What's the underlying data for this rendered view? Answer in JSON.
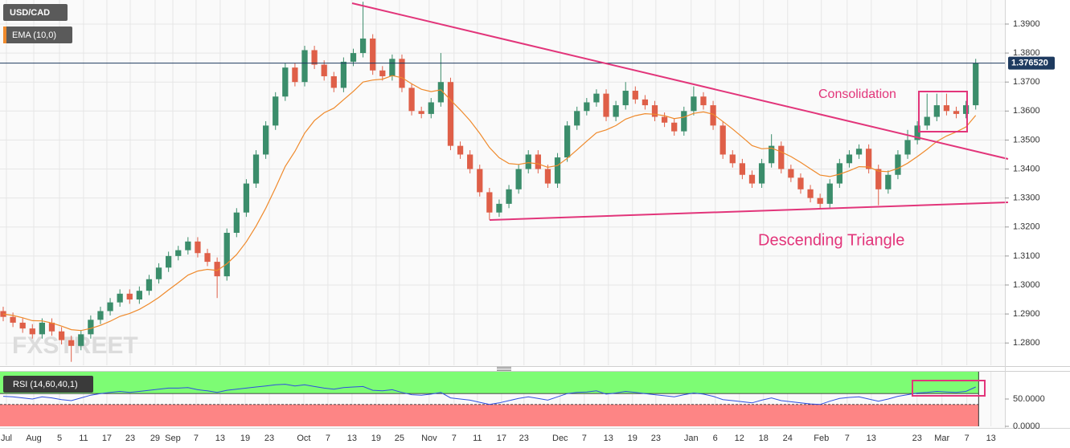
{
  "chart_data": [
    {
      "type": "candlestick",
      "series": [
        {
          "name": "USD/CAD",
          "up_color": "#3b8d6b",
          "down_color": "#df5f48",
          "open": [
            1.291,
            1.289,
            1.287,
            1.285,
            1.283,
            1.287,
            1.284,
            1.281,
            1.279,
            1.283,
            1.288,
            1.291,
            1.294,
            1.297,
            1.295,
            1.298,
            1.302,
            1.306,
            1.31,
            1.312,
            1.315,
            1.311,
            1.308,
            1.303,
            1.318,
            1.325,
            1.335,
            1.345,
            1.355,
            1.365,
            1.375,
            1.37,
            1.381,
            1.376,
            1.372,
            1.368,
            1.377,
            1.38,
            1.385,
            1.374,
            1.372,
            1.378,
            1.368,
            1.36,
            1.359,
            1.363,
            1.37,
            1.348,
            1.345,
            1.34,
            1.332,
            1.325,
            1.328,
            1.333,
            1.34,
            1.345,
            1.34,
            1.335,
            1.344,
            1.355,
            1.36,
            1.363,
            1.366,
            1.358,
            1.362,
            1.367,
            1.364,
            1.362,
            1.358,
            1.356,
            1.353,
            1.36,
            1.365,
            1.362,
            1.355,
            1.345,
            1.342,
            1.338,
            1.335,
            1.342,
            1.348,
            1.34,
            1.337,
            1.333,
            1.33,
            1.328,
            1.335,
            1.342,
            1.345,
            1.347,
            1.34,
            1.333,
            1.338,
            1.345,
            1.35,
            1.355,
            1.358,
            1.362,
            1.36,
            1.359,
            1.362
          ],
          "high": [
            1.2925,
            1.2905,
            1.2885,
            1.2865,
            1.2885,
            1.2885,
            1.2855,
            1.2825,
            1.2845,
            1.2895,
            1.2925,
            1.2955,
            1.2985,
            1.2985,
            1.2995,
            1.3035,
            1.3075,
            1.3115,
            1.3135,
            1.3165,
            1.3165,
            1.3125,
            1.3095,
            1.3195,
            1.3265,
            1.3365,
            1.3465,
            1.3565,
            1.3665,
            1.3765,
            1.3765,
            1.3825,
            1.3825,
            1.3775,
            1.3735,
            1.3785,
            1.3815,
            1.3977,
            1.3865,
            1.3755,
            1.3795,
            1.3795,
            1.3695,
            1.3615,
            1.3645,
            1.38,
            1.3715,
            1.3495,
            1.3465,
            1.3415,
            1.3335,
            1.3295,
            1.3345,
            1.3415,
            1.3465,
            1.3465,
            1.3415,
            1.3455,
            1.3565,
            1.3615,
            1.3645,
            1.3675,
            1.3675,
            1.3635,
            1.37,
            1.3685,
            1.3655,
            1.3635,
            1.3595,
            1.3575,
            1.3615,
            1.3685,
            1.3665,
            1.3635,
            1.3565,
            1.3465,
            1.3435,
            1.3395,
            1.3435,
            1.352,
            1.3495,
            1.3415,
            1.3385,
            1.3345,
            1.3315,
            1.3365,
            1.3435,
            1.3465,
            1.3485,
            1.3485,
            1.3415,
            1.3395,
            1.3465,
            1.3535,
            1.3565,
            1.366,
            1.366,
            1.366,
            1.3615,
            1.3635,
            1.378
          ],
          "low": [
            1.2875,
            1.2855,
            1.2835,
            1.2815,
            1.2815,
            1.2825,
            1.2795,
            1.2735,
            1.2775,
            1.2815,
            1.2865,
            1.2895,
            1.2925,
            1.2935,
            1.2935,
            1.2965,
            1.3005,
            1.3045,
            1.3085,
            1.3105,
            1.3095,
            1.3065,
            1.2955,
            1.3015,
            1.3165,
            1.3235,
            1.3335,
            1.3435,
            1.3535,
            1.3635,
            1.3685,
            1.3685,
            1.3745,
            1.3705,
            1.3665,
            1.3665,
            1.3755,
            1.3785,
            1.3725,
            1.3705,
            1.3705,
            1.3665,
            1.3585,
            1.3575,
            1.3575,
            1.3615,
            1.3465,
            1.3435,
            1.3385,
            1.3305,
            1.3225,
            1.3235,
            1.3265,
            1.3315,
            1.3385,
            1.3385,
            1.3335,
            1.3335,
            1.3425,
            1.3535,
            1.3585,
            1.3615,
            1.3565,
            1.3565,
            1.3605,
            1.3625,
            1.3605,
            1.3565,
            1.3545,
            1.3515,
            1.3515,
            1.3585,
            1.3605,
            1.3535,
            1.3435,
            1.3405,
            1.3365,
            1.3335,
            1.3335,
            1.3405,
            1.3385,
            1.3355,
            1.3315,
            1.3285,
            1.3265,
            1.3265,
            1.3335,
            1.3405,
            1.3435,
            1.3385,
            1.3275,
            1.3315,
            1.3365,
            1.3435,
            1.3485,
            1.3535,
            1.3565,
            1.3585,
            1.3575,
            1.3575,
            1.3605
          ],
          "close": [
            1.289,
            1.287,
            1.285,
            1.283,
            1.287,
            1.284,
            1.281,
            1.279,
            1.283,
            1.288,
            1.291,
            1.294,
            1.297,
            1.295,
            1.298,
            1.302,
            1.306,
            1.31,
            1.312,
            1.315,
            1.311,
            1.308,
            1.303,
            1.318,
            1.325,
            1.335,
            1.345,
            1.355,
            1.365,
            1.375,
            1.37,
            1.381,
            1.376,
            1.372,
            1.368,
            1.377,
            1.38,
            1.385,
            1.374,
            1.372,
            1.378,
            1.368,
            1.36,
            1.359,
            1.363,
            1.37,
            1.348,
            1.345,
            1.34,
            1.332,
            1.325,
            1.328,
            1.333,
            1.34,
            1.345,
            1.34,
            1.335,
            1.344,
            1.355,
            1.36,
            1.363,
            1.366,
            1.358,
            1.362,
            1.367,
            1.364,
            1.362,
            1.358,
            1.356,
            1.353,
            1.36,
            1.365,
            1.362,
            1.355,
            1.345,
            1.342,
            1.338,
            1.335,
            1.342,
            1.348,
            1.34,
            1.337,
            1.333,
            1.33,
            1.328,
            1.335,
            1.342,
            1.345,
            1.347,
            1.34,
            1.333,
            1.338,
            1.345,
            1.35,
            1.355,
            1.358,
            1.362,
            1.36,
            1.359,
            1.362,
            1.3765
          ]
        },
        {
          "name": "EMA (10,0)",
          "color": "#ef8a2c",
          "values": [
            1.29,
            1.2895,
            1.2887,
            1.2877,
            1.2876,
            1.2869,
            1.2858,
            1.2846,
            1.2843,
            1.285,
            1.2861,
            1.2875,
            1.2892,
            1.2902,
            1.2916,
            1.2935,
            1.2957,
            1.2983,
            1.3008,
            1.3034,
            1.3048,
            1.3054,
            1.305,
            1.3073,
            1.3105,
            1.3149,
            1.3203,
            1.3265,
            1.3335,
            1.3409,
            1.3461,
            1.3524,
            1.3567,
            1.3594,
            1.361,
            1.3639,
            1.3668,
            1.37,
            1.3707,
            1.371,
            1.3722,
            1.3715,
            1.3694,
            1.3675,
            1.3667,
            1.3673,
            1.3638,
            1.3604,
            1.3567,
            1.3523,
            1.3474,
            1.3439,
            1.3419,
            1.3416,
            1.3422,
            1.3418,
            1.3406,
            1.3412,
            1.3437,
            1.3466,
            1.3496,
            1.3525,
            1.3535,
            1.355,
            1.3572,
            1.3584,
            1.3591,
            1.3589,
            1.3584,
            1.3574,
            1.3579,
            1.3592,
            1.3597,
            1.3589,
            1.3564,
            1.3538,
            1.351,
            1.3481,
            1.347,
            1.3472,
            1.3459,
            1.3443,
            1.3423,
            1.3401,
            1.3379,
            1.3374,
            1.3382,
            1.3394,
            1.3408,
            1.3407,
            1.3393,
            1.3391,
            1.3402,
            1.342,
            1.3443,
            1.3468,
            1.3495,
            1.3514,
            1.3528,
            1.3545,
            1.3585
          ]
        }
      ],
      "last_price": {
        "value": 1.37652,
        "label": "1.376520",
        "color": "#1e3a5f"
      },
      "annotations": [
        "Consolidation",
        "Descending Triangle"
      ],
      "watermark": "FXSTREET",
      "xlim": [
        -0.33,
        103
      ],
      "xticks": [
        {
          "value": 0.33,
          "label": "Jul"
        },
        {
          "value": 3.14,
          "label": "Aug"
        },
        {
          "value": 5.79,
          "label": "5"
        },
        {
          "value": 8.26,
          "label": "11"
        },
        {
          "value": 10.66,
          "label": "17"
        },
        {
          "value": 13.06,
          "label": "23"
        },
        {
          "value": 15.62,
          "label": "29"
        },
        {
          "value": 17.44,
          "label": "Sep"
        },
        {
          "value": 19.83,
          "label": "7"
        },
        {
          "value": 22.31,
          "label": "13"
        },
        {
          "value": 24.88,
          "label": "19"
        },
        {
          "value": 27.36,
          "label": "23"
        },
        {
          "value": 30.91,
          "label": "Oct"
        },
        {
          "value": 33.39,
          "label": "7"
        },
        {
          "value": 35.87,
          "label": "13"
        },
        {
          "value": 38.35,
          "label": "19"
        },
        {
          "value": 40.74,
          "label": "25"
        },
        {
          "value": 43.8,
          "label": "Nov"
        },
        {
          "value": 46.36,
          "label": "7"
        },
        {
          "value": 48.76,
          "label": "11"
        },
        {
          "value": 51.24,
          "label": "17"
        },
        {
          "value": 53.55,
          "label": "23"
        },
        {
          "value": 57.27,
          "label": "Dec"
        },
        {
          "value": 59.75,
          "label": "7"
        },
        {
          "value": 62.23,
          "label": "13"
        },
        {
          "value": 64.71,
          "label": "19"
        },
        {
          "value": 67.11,
          "label": "23"
        },
        {
          "value": 70.74,
          "label": "Jan"
        },
        {
          "value": 73.22,
          "label": "6"
        },
        {
          "value": 75.7,
          "label": "12"
        },
        {
          "value": 78.18,
          "label": "18"
        },
        {
          "value": 80.66,
          "label": "24"
        },
        {
          "value": 84.13,
          "label": "Feb"
        },
        {
          "value": 86.78,
          "label": "7"
        },
        {
          "value": 89.26,
          "label": "13"
        },
        {
          "value": 93.97,
          "label": "23"
        },
        {
          "value": 96.53,
          "label": "Mar"
        },
        {
          "value": 99.09,
          "label": "7"
        },
        {
          "value": 101.57,
          "label": "13"
        }
      ],
      "ylim": [
        1.2723,
        1.3983
      ],
      "yticks": [
        {
          "value": 1.28,
          "label": "1.2800"
        },
        {
          "value": 1.29,
          "label": "1.2900"
        },
        {
          "value": 1.3,
          "label": "1.3000"
        },
        {
          "value": 1.31,
          "label": "1.3100"
        },
        {
          "value": 1.32,
          "label": "1.3200"
        },
        {
          "value": 1.33,
          "label": "1.3300"
        },
        {
          "value": 1.34,
          "label": "1.3400"
        },
        {
          "value": 1.35,
          "label": "1.3500"
        },
        {
          "value": 1.36,
          "label": "1.3600"
        },
        {
          "value": 1.37,
          "label": "1.3700"
        },
        {
          "value": 1.38,
          "label": "1.3800"
        },
        {
          "value": 1.39,
          "label": "1.3900"
        }
      ],
      "grid": true
    },
    {
      "type": "line",
      "title": "RSI (14,60,40,1)",
      "color": "#2f4fe0",
      "values": [
        55,
        54,
        52,
        50,
        54,
        52,
        49,
        47,
        52,
        57,
        60,
        62,
        64,
        62,
        64,
        66,
        68,
        70,
        70,
        71,
        67,
        65,
        62,
        66,
        68,
        70,
        72,
        74,
        76,
        77,
        74,
        76,
        73,
        70,
        68,
        71,
        72,
        73,
        66,
        65,
        67,
        62,
        58,
        57,
        59,
        62,
        52,
        50,
        48,
        44,
        40,
        43,
        47,
        51,
        54,
        51,
        48,
        54,
        60,
        62,
        63,
        65,
        59,
        61,
        64,
        62,
        60,
        58,
        56,
        54,
        58,
        61,
        59,
        55,
        49,
        47,
        45,
        43,
        48,
        52,
        47,
        45,
        43,
        41,
        40,
        46,
        51,
        53,
        54,
        50,
        46,
        50,
        55,
        58,
        61,
        62,
        64,
        63,
        62,
        64,
        72
      ],
      "upper_band": 60,
      "lower_band": 40,
      "upper_color": "#7dfc74",
      "lower_color": "#fd8585",
      "ylim": [
        0,
        100
      ],
      "yticks": [
        {
          "value": 50,
          "label": "50.0000"
        },
        {
          "value": 0,
          "label": "0.0000"
        }
      ]
    }
  ]
}
